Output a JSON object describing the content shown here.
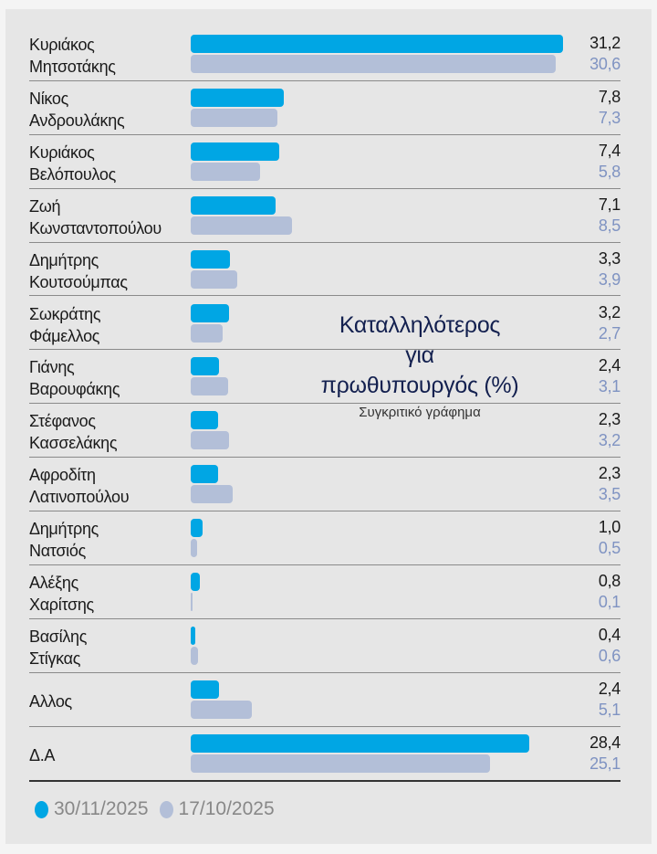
{
  "chart_data": {
    "type": "bar",
    "orientation": "horizontal",
    "title": "Καταλληλότερος για πρωθυπουργός (%)",
    "subtitle": "Συγκριτικό γράφημα",
    "categories": [
      [
        "Κυριάκος",
        "Μητσοτάκης"
      ],
      [
        "Νίκος",
        "Ανδρουλάκης"
      ],
      [
        "Κυριάκος",
        "Βελόπουλος"
      ],
      [
        "Ζωή",
        "Κωνσταντοπούλου"
      ],
      [
        "Δημήτρης",
        "Κουτσούμπας"
      ],
      [
        "Σωκράτης",
        "Φάμελλος"
      ],
      [
        "Γιάνης",
        "Βαρουφάκης"
      ],
      [
        "Στέφανος",
        "Κασσελάκης"
      ],
      [
        "Αφροδίτη",
        "Λατινοπούλου"
      ],
      [
        "Δημήτρης",
        "Νατσιός"
      ],
      [
        "Αλέξης",
        "Χαρίτσης"
      ],
      [
        "Βασίλης",
        "Στίγκας"
      ],
      [
        "Αλλος"
      ],
      [
        "Δ.Α"
      ]
    ],
    "series": [
      {
        "name": "30/11/2025",
        "color": "#00a6e4",
        "values": [
          31.2,
          7.8,
          7.4,
          7.1,
          3.3,
          3.2,
          2.4,
          2.3,
          2.3,
          1.0,
          0.8,
          0.4,
          2.4,
          28.4
        ],
        "labels": [
          "31,2",
          "7,8",
          "7,4",
          "7,1",
          "3,3",
          "3,2",
          "2,4",
          "2,3",
          "2,3",
          "1,0",
          "0,8",
          "0,4",
          "2,4",
          "28,4"
        ]
      },
      {
        "name": "17/10/2025",
        "color": "#b3bfd8",
        "values": [
          30.6,
          7.3,
          5.8,
          8.5,
          3.9,
          2.7,
          3.1,
          3.2,
          3.5,
          0.5,
          0.1,
          0.6,
          5.1,
          25.1
        ],
        "labels": [
          "30,6",
          "7,3",
          "5,8",
          "8,5",
          "3,9",
          "2,7",
          "3,1",
          "3,2",
          "3,5",
          "0,5",
          "0,1",
          "0,6",
          "5,1",
          "25,1"
        ]
      }
    ],
    "legend": "bottom-left",
    "grid": false
  },
  "title_lines": [
    "Καταλληλότερος",
    "για",
    "πρωθυπουργός (%)"
  ]
}
